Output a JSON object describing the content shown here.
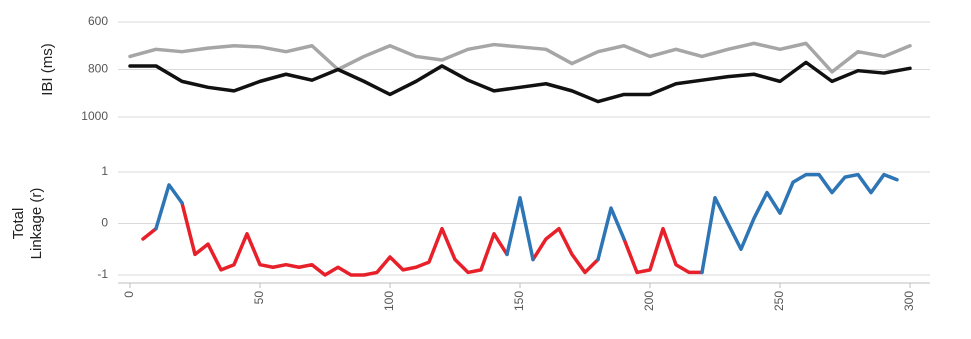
{
  "chart_data": [
    {
      "type": "line",
      "ylabel": [
        "IBI (ms)"
      ],
      "x": [
        0,
        10,
        20,
        30,
        40,
        50,
        60,
        70,
        80,
        90,
        100,
        110,
        120,
        130,
        140,
        150,
        160,
        170,
        180,
        190,
        200,
        210,
        220,
        230,
        240,
        250,
        260,
        270,
        280,
        290,
        300
      ],
      "xlim": [
        0,
        300
      ],
      "ylim": [
        1000,
        600
      ],
      "yticks": [
        600,
        800,
        1000
      ],
      "grid": true,
      "series": [
        {
          "color": "#a6a6a6",
          "values": [
            745,
            715,
            725,
            710,
            700,
            705,
            725,
            700,
            800,
            745,
            700,
            745,
            760,
            715,
            695,
            705,
            715,
            775,
            725,
            700,
            745,
            715,
            745,
            715,
            690,
            715,
            690,
            810,
            725,
            745,
            700
          ]
        },
        {
          "color": "#111111",
          "values": [
            785,
            785,
            850,
            875,
            890,
            850,
            820,
            845,
            800,
            850,
            905,
            850,
            785,
            845,
            890,
            875,
            860,
            890,
            935,
            905,
            905,
            860,
            845,
            830,
            820,
            850,
            770,
            850,
            805,
            815,
            795
          ]
        }
      ]
    },
    {
      "type": "line",
      "ylabel": [
        "Total",
        "Linkage (r)"
      ],
      "x": [
        5,
        10,
        15,
        20,
        25,
        30,
        35,
        40,
        45,
        50,
        55,
        60,
        65,
        70,
        75,
        80,
        85,
        90,
        95,
        100,
        105,
        110,
        115,
        120,
        125,
        130,
        135,
        140,
        145,
        150,
        155,
        160,
        165,
        170,
        175,
        180,
        185,
        190,
        195,
        200,
        205,
        210,
        215,
        220,
        225,
        230,
        235,
        240,
        245,
        250,
        255,
        260,
        265,
        270,
        275,
        280,
        285,
        290,
        295
      ],
      "xlim": [
        0,
        300
      ],
      "xticks": [
        0,
        50,
        100,
        150,
        200,
        250,
        300
      ],
      "ylim": [
        -1,
        1
      ],
      "yticks": [
        -1,
        0,
        1
      ],
      "grid": true,
      "series": [
        {
          "color": "#e8202a",
          "values": [
            -0.3,
            -0.1,
            null,
            0.4,
            -0.6,
            -0.4,
            -0.9,
            -0.8,
            -0.2,
            -0.8,
            -0.85,
            -0.8,
            -0.85,
            -0.8,
            -1,
            -0.85,
            -1,
            -1,
            -0.95,
            -0.65,
            -0.9,
            -0.85,
            -0.75,
            -0.1,
            -0.7,
            -0.95,
            -0.9,
            -0.2,
            -0.6,
            null,
            -0.7,
            -0.3,
            -0.1,
            -0.6,
            -0.95,
            -0.7,
            null,
            -0.3,
            -0.95,
            -0.9,
            -0.1,
            -0.8,
            -0.95,
            -0.95,
            null,
            null,
            -0.5,
            null,
            null,
            null,
            null,
            null,
            null,
            null,
            null,
            null,
            null,
            null,
            null
          ]
        },
        {
          "color": "#2e75b6",
          "values": [
            null,
            -0.1,
            0.75,
            0.4,
            null,
            null,
            null,
            null,
            null,
            null,
            null,
            null,
            null,
            null,
            null,
            null,
            null,
            null,
            null,
            null,
            null,
            null,
            null,
            null,
            null,
            null,
            null,
            null,
            -0.6,
            0.5,
            -0.7,
            null,
            null,
            null,
            null,
            -0.7,
            0.3,
            -0.3,
            null,
            null,
            null,
            null,
            null,
            -0.95,
            0.5,
            0,
            -0.5,
            0.1,
            0.6,
            0.2,
            0.8,
            0.95,
            0.95,
            0.6,
            0.9,
            0.95,
            0.6,
            0.95,
            0.85
          ]
        }
      ]
    }
  ]
}
